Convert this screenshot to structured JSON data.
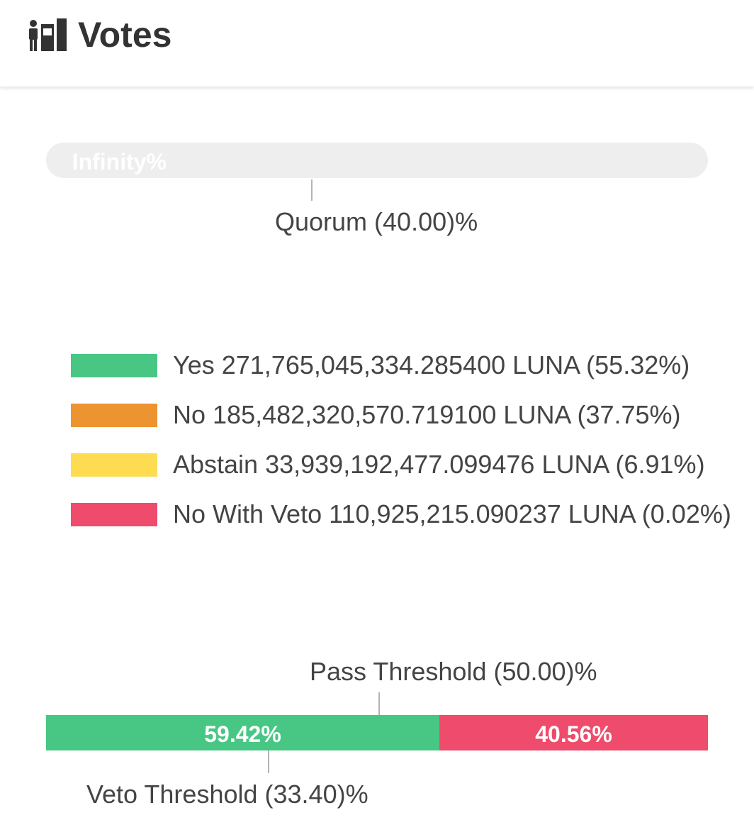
{
  "header": {
    "title": "Votes",
    "icon": "voting-booth-icon"
  },
  "quorum": {
    "bar_label": "Infinity%",
    "marker_label": "Quorum (40.00)%",
    "marker_percent": 40.0,
    "colors": {
      "track": "#eeeeee",
      "label": "#ffffff"
    }
  },
  "legend": {
    "items": [
      {
        "label": "Yes 271,765,045,334.285400 LUNA (55.32%)",
        "color": "#48c784"
      },
      {
        "label": "No 185,482,320,570.719100 LUNA (37.75%)",
        "color": "#ec9430"
      },
      {
        "label": "Abstain 33,939,192,477.099476 LUNA (6.91%)",
        "color": "#fddc52"
      },
      {
        "label": "No With Veto 110,925,215.090237 LUNA (0.02%)",
        "color": "#ef4b6c"
      }
    ]
  },
  "result": {
    "yes_percent_label": "59.42%",
    "no_percent_label": "40.56%",
    "yes_percent": 59.42,
    "no_percent": 40.56,
    "yes_color": "#48c784",
    "no_color": "#ef4b6c",
    "pass_threshold_label": "Pass Threshold (50.00)%",
    "pass_threshold_percent": 50.0,
    "veto_threshold_label": "Veto Threshold (33.40)%",
    "veto_threshold_percent": 33.4
  }
}
